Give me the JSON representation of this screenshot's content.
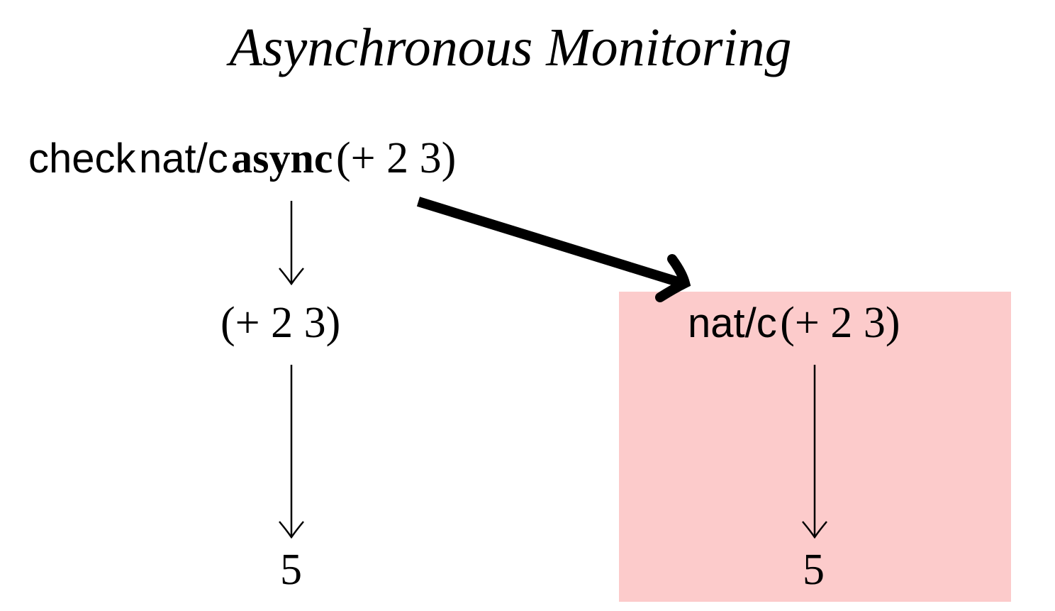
{
  "title": "Asynchronous Monitoring",
  "colors": {
    "highlight_box": "#fccbcb",
    "ink": "#000000"
  },
  "left_branch": {
    "top_expression": {
      "keyword": "check",
      "contract": "nat/c",
      "mode": "async",
      "expression": "(+ 2 3)"
    },
    "middle_expression": "(+ 2 3)",
    "result": "5"
  },
  "right_branch": {
    "monitor_expression": {
      "contract": "nat/c",
      "expression": "(+ 2 3)"
    },
    "result": "5"
  }
}
